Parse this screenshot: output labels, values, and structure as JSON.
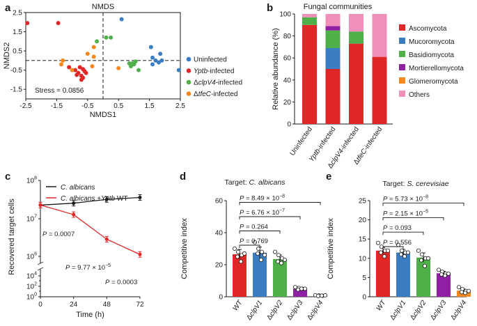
{
  "colors": {
    "uninfected": "#3a7ec1",
    "yptb": "#e02727",
    "clpv4": "#4fb04a",
    "tfec": "#f5891f",
    "ascomycota": "#e02727",
    "mucoromycota": "#3a7ec1",
    "basidiomycota": "#4fb04a",
    "mortierellomycota": "#8f1fa3",
    "glomeromycota": "#f5891f",
    "others": "#f08fb9"
  },
  "chart_data": [
    {
      "panel": "a",
      "type": "scatter",
      "title": "NMDS",
      "xlabel": "NMDS1",
      "ylabel": "NMDS2",
      "xlim": [
        -2.5,
        2.5
      ],
      "ylim": [
        -2,
        2.5
      ],
      "xticks": [
        "-2.5",
        "-1.5",
        "-0.5",
        "0.5",
        "1.5",
        "2.5"
      ],
      "yticks": [
        "2.5",
        "1.5",
        "0.5",
        "-0.5",
        "-1.5"
      ],
      "annotation": "Stress = 0.0856",
      "legend": [
        {
          "pre": "",
          "italic": "",
          "post": "Uninfected",
          "color_key": "uninfected"
        },
        {
          "pre": "",
          "italic": "Yptb",
          "post": "-infected",
          "color_key": "yptb"
        },
        {
          "pre": "Δ",
          "italic": "clpV4",
          "post": "-infected",
          "color_key": "clpv4"
        },
        {
          "pre": "Δ",
          "italic": "tfeC",
          "post": "-infected",
          "color_key": "tfec"
        }
      ],
      "series": [
        {
          "name": "Uninfected",
          "color_key": "uninfected",
          "points": [
            [
              0.6,
              2.15
            ],
            [
              1.55,
              0.7
            ],
            [
              1.85,
              0.35
            ],
            [
              1.6,
              0.15
            ],
            [
              1.7,
              0
            ],
            [
              1.9,
              0
            ],
            [
              1.8,
              -0.1
            ],
            [
              1.6,
              -0.2
            ],
            [
              2.45,
              -0.5
            ]
          ]
        },
        {
          "name": "Yptb-infected",
          "color_key": "yptb",
          "points": [
            [
              -2.45,
              1.95
            ],
            [
              -1.45,
              1.95
            ],
            [
              -1.1,
              -0.35
            ],
            [
              -0.9,
              -0.5
            ],
            [
              -0.8,
              -0.65
            ],
            [
              -0.7,
              -0.8
            ],
            [
              -0.65,
              -0.45
            ],
            [
              -0.6,
              -0.55
            ],
            [
              -0.75,
              -0.35
            ],
            [
              -0.85,
              -0.75
            ],
            [
              -0.55,
              -0.65
            ],
            [
              -0.7,
              -1.0
            ],
            [
              -0.65,
              -0.9
            ]
          ]
        },
        {
          "name": "ΔclpV4-infected",
          "color_key": "clpv4",
          "points": [
            [
              0.1,
              1.2
            ],
            [
              0.25,
              1.2
            ],
            [
              -0.2,
              1.0
            ],
            [
              1.05,
              -0.05
            ],
            [
              0.85,
              -0.15
            ],
            [
              0.9,
              -0.3
            ],
            [
              1.0,
              -0.2
            ],
            [
              1.15,
              -0.5
            ],
            [
              0.95,
              -0.15
            ]
          ]
        },
        {
          "name": "ΔtfeC-infected",
          "color_key": "tfec",
          "points": [
            [
              -0.3,
              0.7
            ],
            [
              -0.5,
              0.35
            ],
            [
              -0.3,
              0.2
            ],
            [
              -1.3,
              0
            ],
            [
              -1.35,
              -0.2
            ],
            [
              -1.0,
              -0.5
            ],
            [
              -0.35,
              -0.3
            ],
            [
              0.5,
              -0.4
            ]
          ]
        }
      ]
    },
    {
      "panel": "b",
      "type": "bar",
      "stacked": true,
      "title": "Fungal communities",
      "ylabel": "Relative abundance (%)",
      "ylim": [
        0,
        100
      ],
      "yticks": [
        "0",
        "20",
        "40",
        "60",
        "80",
        "100"
      ],
      "categories": [
        {
          "pre": "",
          "italic": "",
          "post": "Uninfected"
        },
        {
          "pre": "",
          "italic": "Yptb",
          "post": "-infected"
        },
        {
          "pre": "Δ",
          "italic": "clpV4",
          "post": "-infected"
        },
        {
          "pre": "Δ",
          "italic": "tfeC",
          "post": "-infected"
        }
      ],
      "series": [
        {
          "name": "Ascomycota",
          "color_key": "ascomycota",
          "values": [
            90,
            50,
            73,
            61
          ]
        },
        {
          "name": "Mucoromycota",
          "color_key": "mucoromycota",
          "values": [
            0,
            19,
            0,
            0
          ]
        },
        {
          "name": "Basidiomycota",
          "color_key": "basidiomycota",
          "values": [
            7,
            16,
            11,
            0
          ]
        },
        {
          "name": "Mortierellomycota",
          "color_key": "mortierellomycota",
          "values": [
            0,
            4,
            0,
            0
          ]
        },
        {
          "name": "Glomeromycota",
          "color_key": "glomeromycota",
          "values": [
            0,
            0,
            0,
            0
          ]
        },
        {
          "name": "Others",
          "color_key": "others",
          "values": [
            3,
            11,
            16,
            39
          ]
        }
      ]
    },
    {
      "panel": "c",
      "type": "line",
      "ylabel": "Recovered target cells",
      "xlabel": "Time (h)",
      "yscale": "log",
      "xticks": [
        "0",
        "24",
        "48",
        "72"
      ],
      "x": [
        0,
        24,
        48,
        72
      ],
      "yticks": [
        {
          "base": "10",
          "exp": "8",
          "value": 8
        },
        {
          "base": "10",
          "exp": "7",
          "value": 7
        },
        {
          "base": "10",
          "exp": "6",
          "value": 6
        },
        {
          "base": "10",
          "exp": "4",
          "value": 4
        },
        {
          "base": "10",
          "exp": "2",
          "value": 2
        },
        {
          "base": "10",
          "exp": "0",
          "value": 0
        }
      ],
      "legend": [
        {
          "pre": "",
          "italic": "C. albicans",
          "mid": "",
          "italic2": "",
          "post": "",
          "color": "#1a1a1a"
        },
        {
          "pre": "",
          "italic": "C. albicans",
          "mid": " +",
          "italic2": "Yptb",
          "post": " WT",
          "color": "#e02727"
        }
      ],
      "series": [
        {
          "name": "C. albicans",
          "color": "#1a1a1a",
          "log10_values": [
            7.35,
            7.4,
            7.5,
            7.55
          ]
        },
        {
          "name": "C. albicans +Yptb WT",
          "color": "#e02727",
          "log10_values": [
            7.35,
            7.1,
            6.45,
            6.05
          ]
        }
      ],
      "pvalues": [
        {
          "pre": "P",
          "mid": " = 0.0007",
          "exp": "",
          "x": 24,
          "log10_y": 6.68
        },
        {
          "pre": "P",
          "mid": " = 9.77 × 10",
          "exp": "−5",
          "x": 48,
          "log10_y": 6.25
        },
        {
          "pre": "P",
          "mid": " = 0.0003",
          "exp": "",
          "x": 72,
          "log10_y": 5.65
        }
      ]
    },
    {
      "panel": "d",
      "type": "bar",
      "title_pre": "Target: ",
      "title_italic": "C. albicans",
      "ylabel": "Competitive index",
      "ylim": [
        0,
        60
      ],
      "yticks": [
        "0",
        "20",
        "40",
        "60"
      ],
      "categories": [
        {
          "pre": "",
          "italic": "WT",
          "color_key": "yptb"
        },
        {
          "pre": "Δ",
          "italic": "clpV1",
          "color_key": "uninfected"
        },
        {
          "pre": "Δ",
          "italic": "clpV2",
          "color_key": "clpv4"
        },
        {
          "pre": "Δ",
          "italic": "clpV3",
          "color_key": "mortierellomycota"
        },
        {
          "pre": "Δ",
          "italic": "clpV4",
          "color_key": "glomeromycota"
        }
      ],
      "values": [
        26.5,
        27.5,
        23.5,
        5,
        0.7
      ],
      "errors": [
        3,
        3.5,
        2.5,
        0.8,
        0.3
      ],
      "points": [
        [
          30,
          28,
          26,
          25,
          22,
          27
        ],
        [
          34,
          30,
          28,
          27,
          23,
          26
        ],
        [
          28,
          26,
          24,
          22,
          21,
          23
        ],
        [
          6,
          5.5,
          5,
          4.5,
          5,
          5
        ],
        [
          1,
          0.8,
          0.6,
          0.5,
          0.7,
          0.9
        ]
      ],
      "comparisons": [
        {
          "label_pre": "P",
          "label_mid": " = 0.769",
          "label_exp": "",
          "to": 1
        },
        {
          "label_pre": "P",
          "label_mid": " = 0.264",
          "label_exp": "",
          "to": 2
        },
        {
          "label_pre": "P",
          "label_mid": " = 6.76 × 10",
          "label_exp": "−7",
          "to": 3
        },
        {
          "label_pre": "P",
          "label_mid": " = 8.49 × 10",
          "label_exp": "−8",
          "to": 4
        }
      ]
    },
    {
      "panel": "e",
      "type": "bar",
      "title_pre": "Target: ",
      "title_italic": "S. cerevisiae",
      "ylabel": "Competitive index",
      "ylim": [
        0,
        25
      ],
      "yticks": [
        "0",
        "5",
        "10",
        "15",
        "20",
        "25"
      ],
      "categories": [
        {
          "pre": "",
          "italic": "WT",
          "color_key": "yptb"
        },
        {
          "pre": "Δ",
          "italic": "clpV1",
          "color_key": "uninfected"
        },
        {
          "pre": "Δ",
          "italic": "clpV2",
          "color_key": "clpv4"
        },
        {
          "pre": "Δ",
          "italic": "clpV3",
          "color_key": "mortierellomycota"
        },
        {
          "pre": "Δ",
          "italic": "clpV4",
          "color_key": "glomeromycota"
        }
      ],
      "values": [
        12,
        11.5,
        10.2,
        6.1,
        1.6
      ],
      "errors": [
        0.8,
        0.8,
        1.2,
        0.5,
        0.4
      ],
      "points": [
        [
          14,
          13,
          12,
          11.5,
          10.5,
          12
        ],
        [
          13.5,
          12,
          11.5,
          11,
          10.5,
          11.5
        ],
        [
          12,
          11,
          10,
          9.5,
          8,
          10
        ],
        [
          7,
          6.5,
          6,
          5.8,
          5.5,
          6
        ],
        [
          2.5,
          2,
          1.5,
          1.2,
          1,
          1.5
        ]
      ],
      "comparisons": [
        {
          "label_pre": "P",
          "label_mid": " = 0.556",
          "label_exp": "",
          "to": 1
        },
        {
          "label_pre": "P",
          "label_mid": " = 0.093",
          "label_exp": "",
          "to": 2
        },
        {
          "label_pre": "P",
          "label_mid": " = 2.15 × 10",
          "label_exp": "−5",
          "to": 3
        },
        {
          "label_pre": "P",
          "label_mid": " = 5.73 × 10",
          "label_exp": "−8",
          "to": 4
        }
      ]
    }
  ],
  "panel_letters": [
    "a",
    "b",
    "c",
    "d",
    "e"
  ]
}
